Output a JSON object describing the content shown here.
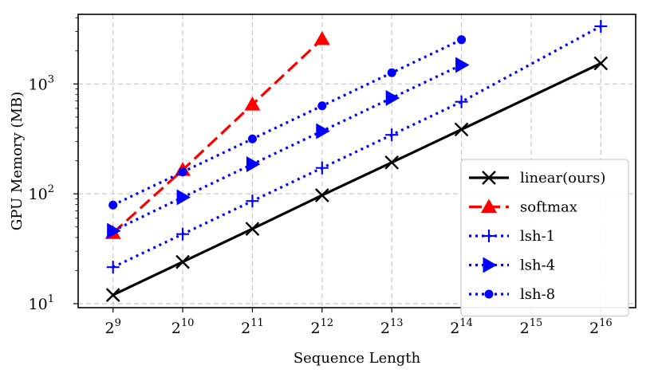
{
  "chart_data": {
    "type": "line",
    "xlabel": "Sequence Length",
    "ylabel": "GPU Memory (MB)",
    "xscale": "log2",
    "yscale": "log10",
    "xlim": [
      362,
      92682
    ],
    "ylim": [
      9.2,
      4300
    ],
    "x_ticks": [
      {
        "value": 512,
        "base": "2",
        "exp": "9"
      },
      {
        "value": 1024,
        "base": "2",
        "exp": "10"
      },
      {
        "value": 2048,
        "base": "2",
        "exp": "11"
      },
      {
        "value": 4096,
        "base": "2",
        "exp": "12"
      },
      {
        "value": 8192,
        "base": "2",
        "exp": "13"
      },
      {
        "value": 16384,
        "base": "2",
        "exp": "14"
      },
      {
        "value": 32768,
        "base": "2",
        "exp": "15"
      },
      {
        "value": 65536,
        "base": "2",
        "exp": "16"
      }
    ],
    "y_ticks": [
      {
        "value": 10,
        "base": "10",
        "exp": "1"
      },
      {
        "value": 100,
        "base": "10",
        "exp": "2"
      },
      {
        "value": 1000,
        "base": "10",
        "exp": "3"
      }
    ],
    "grid": true,
    "legend_position": "lower right",
    "series": [
      {
        "name": "linear(ours)",
        "color": "#000000",
        "dash": "solid",
        "marker": "x",
        "x": [
          512,
          1024,
          2048,
          4096,
          8192,
          16384,
          65536
        ],
        "y": [
          12,
          24,
          48,
          97,
          193,
          385,
          1540
        ]
      },
      {
        "name": "softmax",
        "color": "#ff0000",
        "dash": "dashed",
        "marker": "triangle-up",
        "x": [
          512,
          1024,
          2048,
          4096
        ],
        "y": [
          44,
          165,
          650,
          2560
        ]
      },
      {
        "name": "lsh-1",
        "color": "#0000ff",
        "dash": "dotted",
        "marker": "plus",
        "x": [
          512,
          1024,
          2048,
          4096,
          8192,
          16384,
          65536
        ],
        "y": [
          21.5,
          43,
          86,
          172,
          344,
          688,
          3350
        ]
      },
      {
        "name": "lsh-4",
        "color": "#0000ff",
        "dash": "dotted",
        "marker": "triangle-right",
        "x": [
          512,
          1024,
          2048,
          4096,
          8192,
          16384
        ],
        "y": [
          46,
          93,
          186,
          372,
          745,
          1490
        ]
      },
      {
        "name": "lsh-8",
        "color": "#0000ff",
        "dash": "dotted",
        "marker": "circle",
        "x": [
          512,
          1024,
          2048,
          4096,
          8192,
          16384
        ],
        "y": [
          79,
          158,
          316,
          632,
          1264,
          2528
        ]
      }
    ]
  }
}
